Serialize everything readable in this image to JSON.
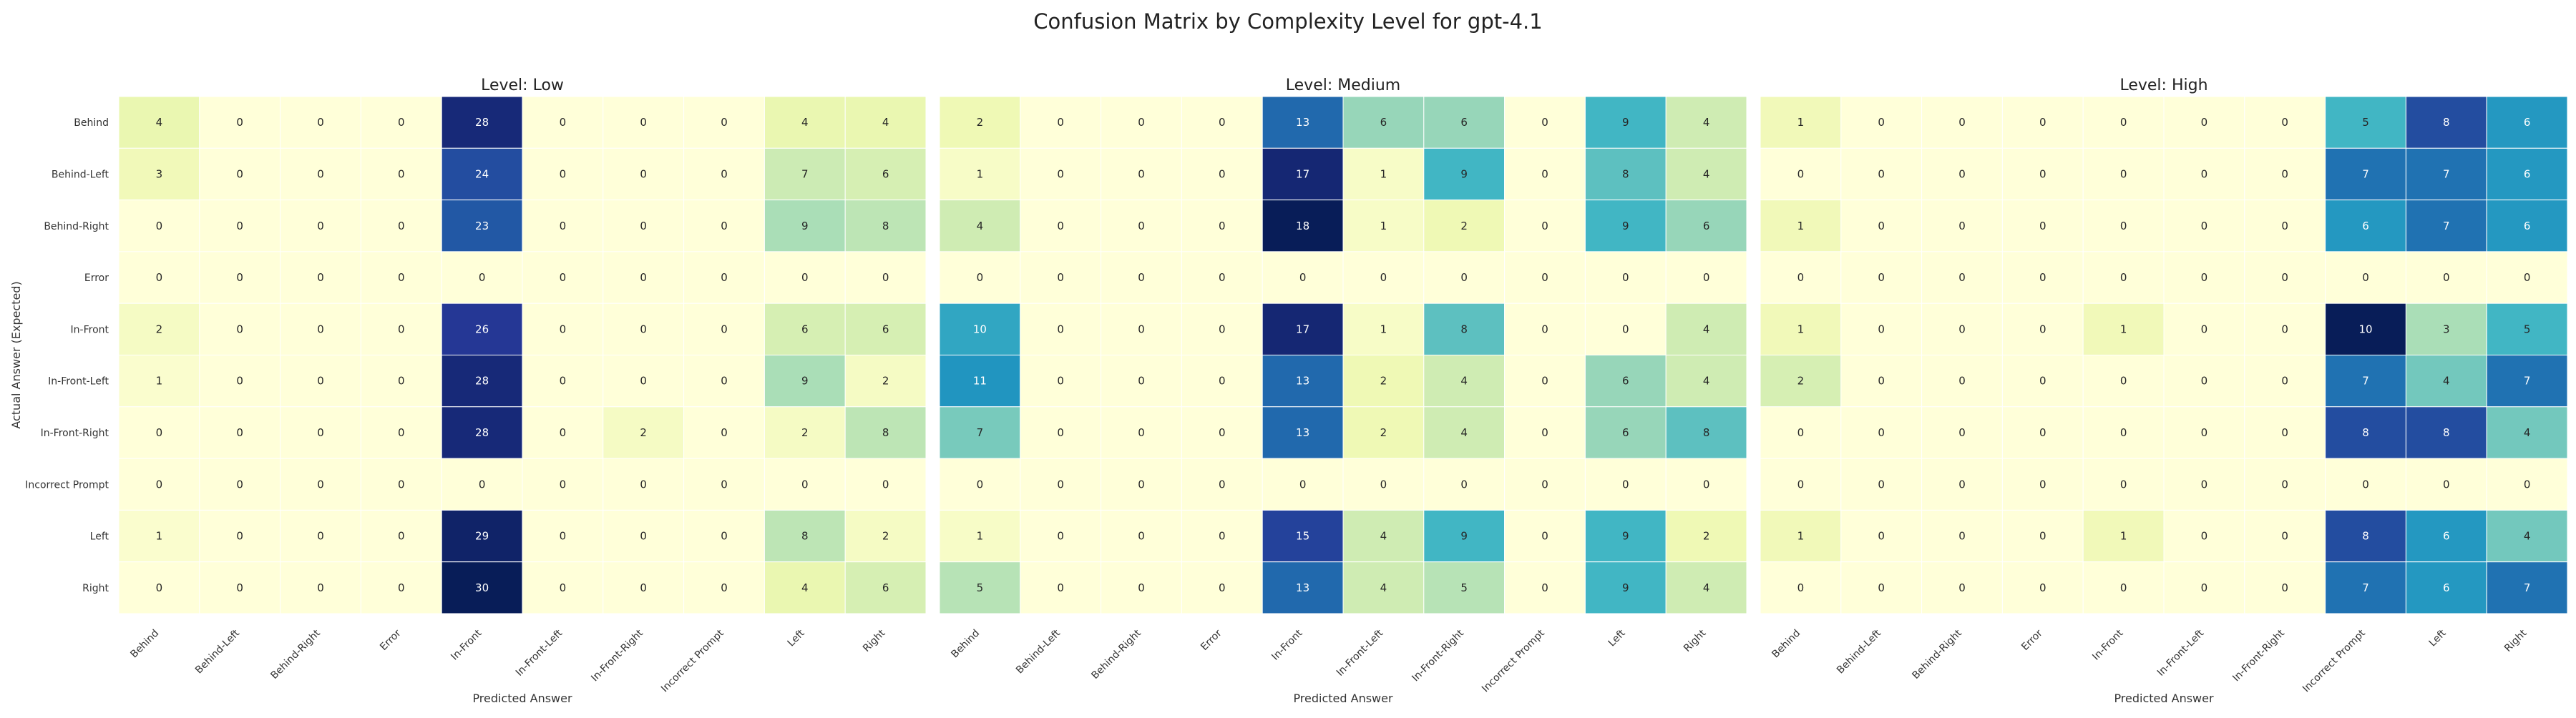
{
  "suptitle": "Confusion Matrix by Complexity Level for gpt-4.1",
  "chart_data": [
    {
      "type": "heatmap",
      "title": "Level: Low",
      "xlabel": "Predicted Answer",
      "ylabel": "Actual Answer (Expected)",
      "x_categories": [
        "Behind",
        "Behind-Left",
        "Behind-Right",
        "Error",
        "In-Front",
        "In-Front-Left",
        "In-Front-Right",
        "Incorrect Prompt",
        "Left",
        "Right"
      ],
      "y_categories": [
        "Behind",
        "Behind-Left",
        "Behind-Right",
        "Error",
        "In-Front",
        "In-Front-Left",
        "In-Front-Right",
        "Incorrect Prompt",
        "Left",
        "Right"
      ],
      "values": [
        [
          4,
          0,
          0,
          0,
          28,
          0,
          0,
          0,
          4,
          4
        ],
        [
          3,
          0,
          0,
          0,
          24,
          0,
          0,
          0,
          7,
          6
        ],
        [
          0,
          0,
          0,
          0,
          23,
          0,
          0,
          0,
          9,
          8
        ],
        [
          0,
          0,
          0,
          0,
          0,
          0,
          0,
          0,
          0,
          0
        ],
        [
          2,
          0,
          0,
          0,
          26,
          0,
          0,
          0,
          6,
          6
        ],
        [
          1,
          0,
          0,
          0,
          28,
          0,
          0,
          0,
          9,
          2
        ],
        [
          0,
          0,
          0,
          0,
          28,
          0,
          2,
          0,
          2,
          8
        ],
        [
          0,
          0,
          0,
          0,
          0,
          0,
          0,
          0,
          0,
          0
        ],
        [
          1,
          0,
          0,
          0,
          29,
          0,
          0,
          0,
          8,
          2
        ],
        [
          0,
          0,
          0,
          0,
          30,
          0,
          0,
          0,
          4,
          6
        ]
      ],
      "colormap": "YlGnBu"
    },
    {
      "type": "heatmap",
      "title": "Level: Medium",
      "xlabel": "Predicted Answer",
      "ylabel": "",
      "x_categories": [
        "Behind",
        "Behind-Left",
        "Behind-Right",
        "Error",
        "In-Front",
        "In-Front-Left",
        "In-Front-Right",
        "Incorrect Prompt",
        "Left",
        "Right"
      ],
      "y_categories": [
        "Behind",
        "Behind-Left",
        "Behind-Right",
        "Error",
        "In-Front",
        "In-Front-Left",
        "In-Front-Right",
        "Incorrect Prompt",
        "Left",
        "Right"
      ],
      "values": [
        [
          2,
          0,
          0,
          0,
          13,
          6,
          6,
          0,
          9,
          4
        ],
        [
          1,
          0,
          0,
          0,
          17,
          1,
          9,
          0,
          8,
          4
        ],
        [
          4,
          0,
          0,
          0,
          18,
          1,
          2,
          0,
          9,
          6
        ],
        [
          0,
          0,
          0,
          0,
          0,
          0,
          0,
          0,
          0,
          0
        ],
        [
          10,
          0,
          0,
          0,
          17,
          1,
          8,
          0,
          0,
          4
        ],
        [
          11,
          0,
          0,
          0,
          13,
          2,
          4,
          0,
          6,
          4
        ],
        [
          7,
          0,
          0,
          0,
          13,
          2,
          4,
          0,
          6,
          8
        ],
        [
          0,
          0,
          0,
          0,
          0,
          0,
          0,
          0,
          0,
          0
        ],
        [
          1,
          0,
          0,
          0,
          15,
          4,
          9,
          0,
          9,
          2
        ],
        [
          5,
          0,
          0,
          0,
          13,
          4,
          5,
          0,
          9,
          4
        ]
      ],
      "colormap": "YlGnBu"
    },
    {
      "type": "heatmap",
      "title": "Level: High",
      "xlabel": "Predicted Answer",
      "ylabel": "",
      "x_categories": [
        "Behind",
        "Behind-Left",
        "Behind-Right",
        "Error",
        "In-Front",
        "In-Front-Left",
        "In-Front-Right",
        "Incorrect Prompt",
        "Left",
        "Right"
      ],
      "y_categories": [
        "Behind",
        "Behind-Left",
        "Behind-Right",
        "Error",
        "In-Front",
        "In-Front-Left",
        "In-Front-Right",
        "Incorrect Prompt",
        "Left",
        "Right"
      ],
      "values": [
        [
          1,
          0,
          0,
          0,
          0,
          0,
          0,
          5,
          8,
          6
        ],
        [
          0,
          0,
          0,
          0,
          0,
          0,
          0,
          7,
          7,
          6
        ],
        [
          1,
          0,
          0,
          0,
          0,
          0,
          0,
          6,
          7,
          6
        ],
        [
          0,
          0,
          0,
          0,
          0,
          0,
          0,
          0,
          0,
          0
        ],
        [
          1,
          0,
          0,
          0,
          1,
          0,
          0,
          10,
          3,
          5
        ],
        [
          2,
          0,
          0,
          0,
          0,
          0,
          0,
          7,
          4,
          7
        ],
        [
          0,
          0,
          0,
          0,
          0,
          0,
          0,
          8,
          8,
          4
        ],
        [
          0,
          0,
          0,
          0,
          0,
          0,
          0,
          0,
          0,
          0
        ],
        [
          1,
          0,
          0,
          0,
          1,
          0,
          0,
          8,
          6,
          4
        ],
        [
          0,
          0,
          0,
          0,
          0,
          0,
          0,
          7,
          6,
          7
        ]
      ],
      "colormap": "YlGnBu"
    }
  ]
}
